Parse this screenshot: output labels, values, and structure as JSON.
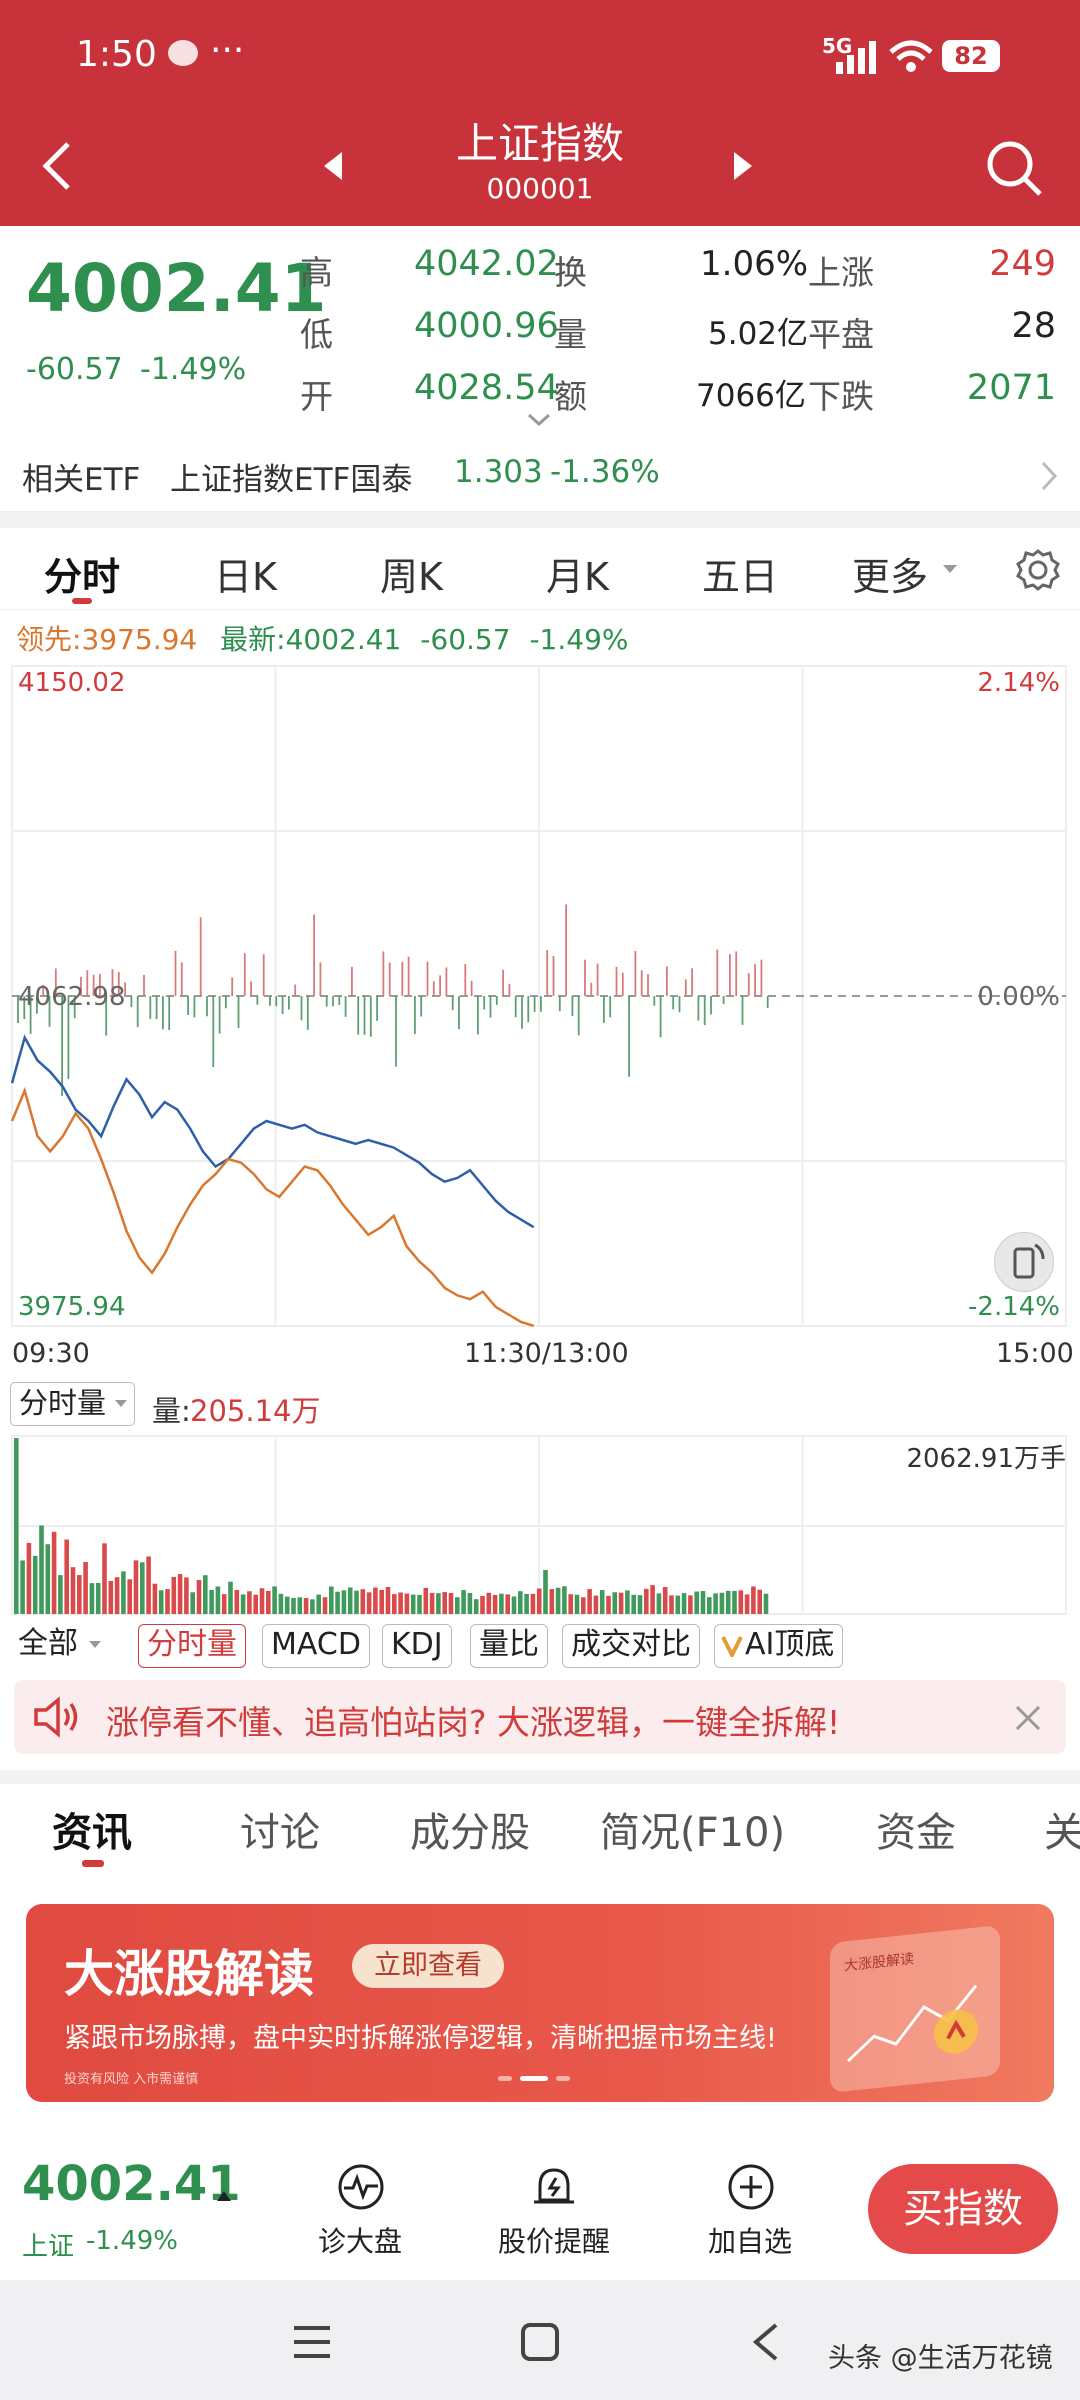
{
  "status_bar": {
    "time": "1:50",
    "dots": "···",
    "network": "5G",
    "battery": "82"
  },
  "header": {
    "title": "上证指数",
    "code": "000001"
  },
  "quote": {
    "price": "4002.41",
    "change": "-60.57",
    "change_pct": "-1.49%",
    "high_label": "高",
    "high": "4042.02",
    "low_label": "低",
    "low": "4000.96",
    "open_label": "开",
    "open": "4028.54",
    "turnover_label": "换",
    "turnover": "1.06%",
    "volume_label": "量",
    "volume": "5.02亿",
    "amount_label": "额",
    "amount": "7066亿",
    "up_label": "上涨",
    "up": "249",
    "flat_label": "平盘",
    "flat": "28",
    "down_label": "下跌",
    "down": "2071"
  },
  "etf": {
    "label": "相关ETF",
    "name": "上证指数ETF国泰",
    "price": "1.303",
    "pct": "-1.36%"
  },
  "chart_tabs": [
    "分时",
    "日K",
    "周K",
    "月K",
    "五日",
    "更多"
  ],
  "legend": {
    "lead_label": "领先:",
    "lead_value": "3975.94",
    "latest_label": "最新:",
    "latest_value": "4002.41",
    "latest_change": "-60.57",
    "latest_pct": "-1.49%"
  },
  "chart_data": {
    "type": "line",
    "title": "",
    "y_top": "4150.02",
    "y_mid": "4062.98",
    "y_bottom": "3975.94",
    "pct_top": "2.14%",
    "pct_mid": "0.00%",
    "pct_bottom": "-2.14%",
    "x_labels": [
      "09:30",
      "11:30/13:00",
      "15:00"
    ],
    "ylim": [
      3975.94,
      4150.02
    ],
    "prev_close": 4062.98,
    "series": [
      {
        "color": "#2f5fa8",
        "values": [
          4040,
          4052,
          4046,
          4043,
          4039,
          4033,
          4030,
          4026,
          4034,
          4041,
          4037,
          4031,
          4035,
          4033,
          4028,
          4022,
          4018,
          4020,
          4024,
          4028,
          4030,
          4029,
          4028,
          4029,
          4027,
          4026,
          4025,
          4024,
          4025,
          4024,
          4023,
          4021,
          4019,
          4016,
          4014,
          4015,
          4017,
          4013,
          4009,
          4006,
          4004,
          4002
        ]
      },
      {
        "color": "#d9772e",
        "values": [
          4030,
          4038,
          4026,
          4022,
          4026,
          4032,
          4028,
          4020,
          4011,
          4001,
          3994,
          3990,
          3995,
          4002,
          4008,
          4013,
          4016,
          4020,
          4019,
          4016,
          4012,
          4010,
          4014,
          4018,
          4017,
          4013,
          4008,
          4004,
          4000,
          4002,
          4005,
          3997,
          3993,
          3990,
          3986,
          3984,
          3983,
          3985,
          3981,
          3979,
          3977,
          3976
        ]
      }
    ]
  },
  "volume": {
    "select_label": "分时量",
    "vol_label": "量:",
    "vol_value": "205.14万",
    "max_label": "2062.91万手"
  },
  "indicators": [
    "全部",
    "分时量",
    "MACD",
    "KDJ",
    "量比",
    "成交对比",
    "AI顶底"
  ],
  "banner1": {
    "text": "涨停看不懂、追高怕站岗? 大涨逻辑，一键全拆解!"
  },
  "news_tabs": [
    "资讯",
    "讨论",
    "成分股",
    "简况(F10)",
    "资金",
    "关"
  ],
  "banner2": {
    "title": "大涨股解读",
    "button": "立即查看",
    "subtitle": "紧跟市场脉搏，盘中实时拆解涨停逻辑，清晰把握市场主线!",
    "disclaimer": "投资有风险  入市需谨慎",
    "card_label": "大涨股解读"
  },
  "bottom": {
    "price": "4002.41",
    "name": "上证",
    "pct": "-1.49%",
    "btn1": "诊大盘",
    "btn2": "股价提醒",
    "btn3": "加自选",
    "buy": "买指数"
  },
  "watermark": "头条 @生活万花镜",
  "colors": {
    "header": "#c7323b",
    "up": "#d23b3b",
    "down": "#2f8f4e"
  }
}
